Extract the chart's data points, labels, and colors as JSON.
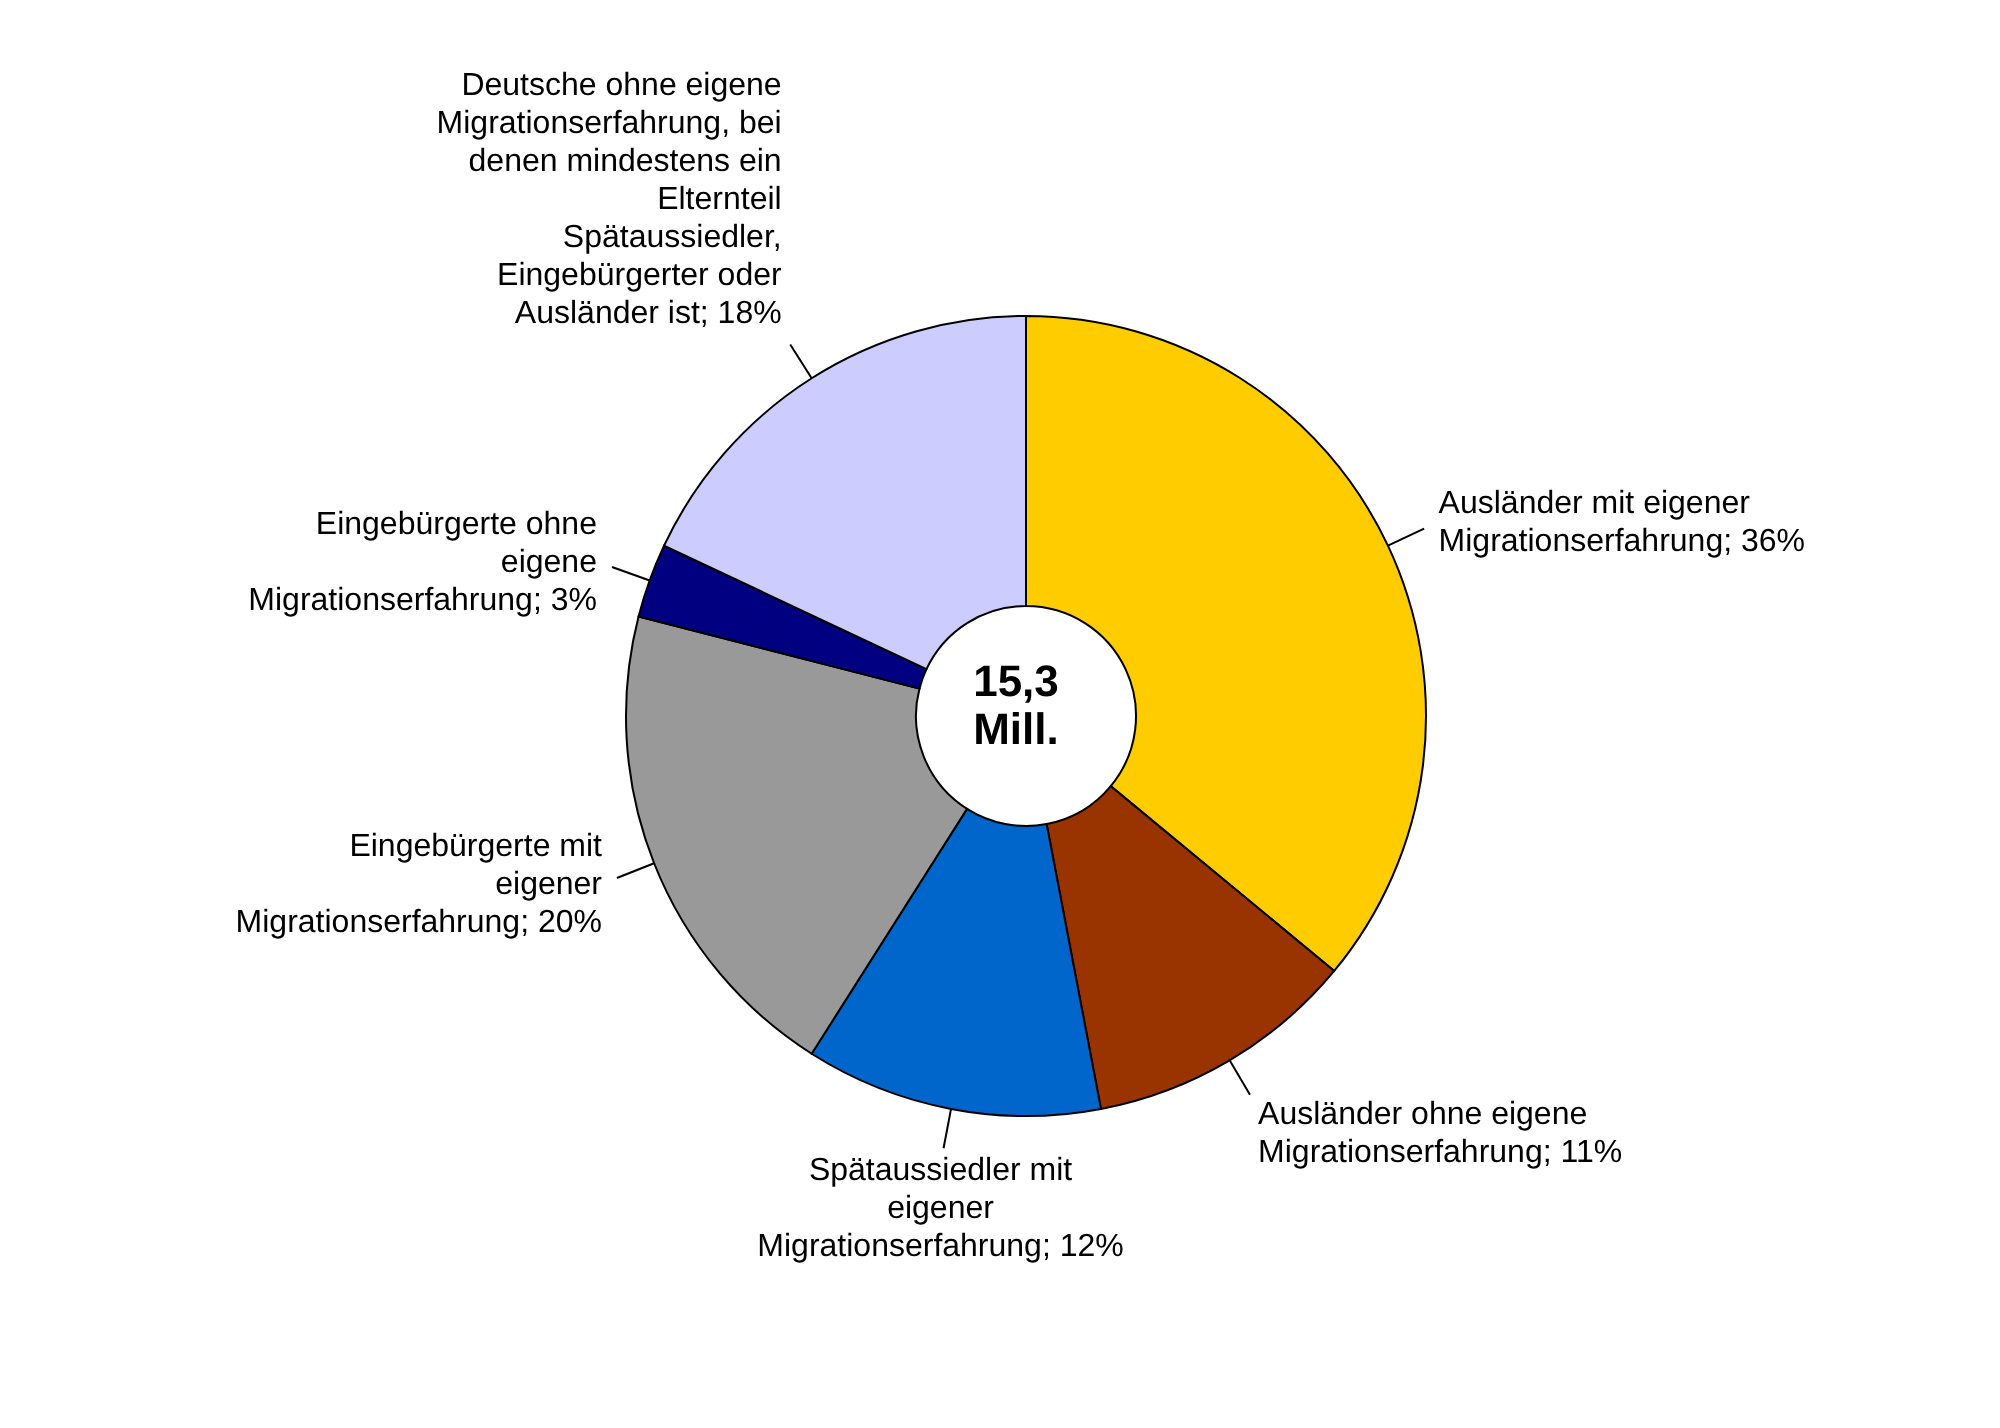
{
  "chart_data": {
    "type": "donut",
    "categories": [
      "Ausländer mit eigener Migrationserfahrung",
      "Ausländer ohne eigene Migrationserfahrung",
      "Spätaussiedler mit eigener Migrationserfahrung",
      "Eingebürgerte mit eigener Migrationserfahrung",
      "Eingebürgerte ohne eigene Migrationserfahrung",
      "Deutsche ohne eigene Migrationserfahrung, bei denen mindestens ein Elternteil Spätaussiedler, Eingebürgerter oder Ausländer ist"
    ],
    "values": [
      36,
      11,
      12,
      20,
      3,
      18
    ],
    "value_labels": [
      "36%",
      "11%",
      "12%",
      "20%",
      "3%",
      "18%"
    ],
    "colors": [
      "#ffcc00",
      "#993300",
      "#0066cc",
      "#999999",
      "#000080",
      "#ccccff"
    ],
    "annotations": [
      "15,3 Mill."
    ],
    "legend": false
  }
}
